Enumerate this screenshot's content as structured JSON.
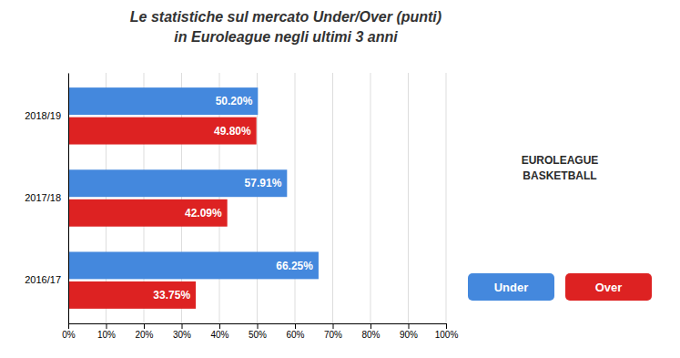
{
  "chart_data": {
    "type": "bar",
    "orientation": "horizontal",
    "title": "Le statistiche sul mercato Under/Over (punti)",
    "subtitle": "in Euroleague negli ultimi 3 anni",
    "categories": [
      "2018/19",
      "2017/18",
      "2016/17"
    ],
    "series": [
      {
        "name": "Under",
        "color": "#4488DD",
        "values": [
          50.2,
          57.91,
          66.25
        ],
        "value_labels": [
          "50.20%",
          "57.91%",
          "66.25%"
        ]
      },
      {
        "name": "Over",
        "color": "#DD2222",
        "values": [
          49.8,
          42.09,
          33.75
        ],
        "value_labels": [
          "49.80%",
          "42.09%",
          "33.75%"
        ]
      }
    ],
    "xlim": [
      0,
      100
    ],
    "xticks": [
      {
        "value": 0,
        "label": "0%"
      },
      {
        "value": 10,
        "label": "10%"
      },
      {
        "value": 20,
        "label": "20%"
      },
      {
        "value": 30,
        "label": "30%"
      },
      {
        "value": 40,
        "label": "40%"
      },
      {
        "value": 50,
        "label": "50%"
      },
      {
        "value": 60,
        "label": "60%"
      },
      {
        "value": 70,
        "label": "70%"
      },
      {
        "value": 80,
        "label": "80%"
      },
      {
        "value": 90,
        "label": "90%"
      },
      {
        "value": 100,
        "label": "100%"
      }
    ],
    "grid": true,
    "legend": "right",
    "data_labels": true,
    "annotations": [
      "EUROLEAGUE",
      "BASKETBALL"
    ]
  }
}
